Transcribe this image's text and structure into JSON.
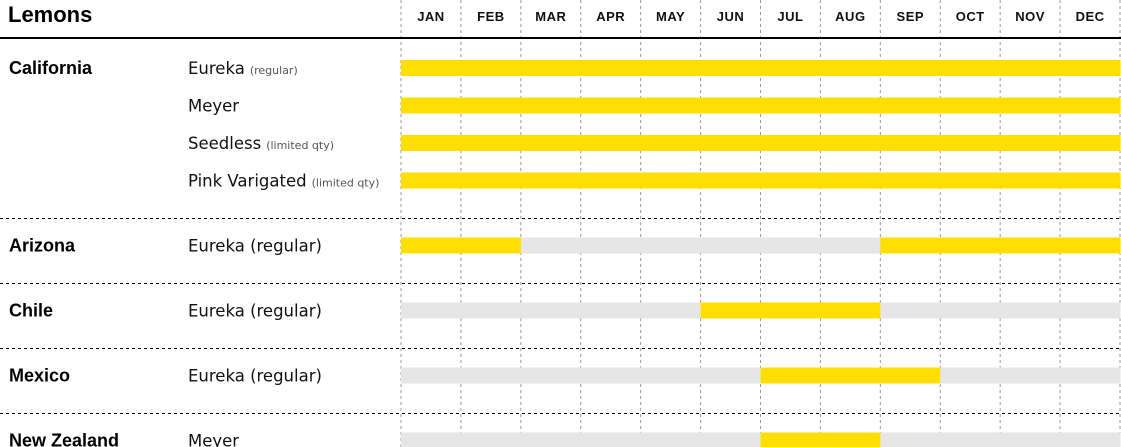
{
  "chart_data": {
    "type": "table",
    "title": "Lemons",
    "months": [
      "JAN",
      "FEB",
      "MAR",
      "APR",
      "MAY",
      "JUN",
      "JUL",
      "AUG",
      "SEP",
      "OCT",
      "NOV",
      "DEC"
    ],
    "groups": [
      {
        "region": "California",
        "rows": [
          {
            "variety": "Eureka",
            "note": "(regular)",
            "available": [
              1,
              1,
              1,
              1,
              1,
              1,
              1,
              1,
              1,
              1,
              1,
              1
            ]
          },
          {
            "variety": "Meyer",
            "note": "",
            "available": [
              1,
              1,
              1,
              1,
              1,
              1,
              1,
              1,
              1,
              1,
              1,
              1
            ]
          },
          {
            "variety": "Seedless",
            "note": "(limited qty)",
            "available": [
              1,
              1,
              1,
              1,
              1,
              1,
              1,
              1,
              1,
              1,
              1,
              1
            ]
          },
          {
            "variety": "Pink Varigated",
            "note": "(limited qty)",
            "available": [
              1,
              1,
              1,
              1,
              1,
              1,
              1,
              1,
              1,
              1,
              1,
              1
            ]
          }
        ]
      },
      {
        "region": "Arizona",
        "rows": [
          {
            "variety": "Eureka (regular)",
            "note": "",
            "available": [
              1,
              1,
              0,
              0,
              0,
              0,
              0,
              0,
              1,
              1,
              1,
              1
            ]
          }
        ]
      },
      {
        "region": "Chile",
        "rows": [
          {
            "variety": "Eureka (regular)",
            "note": "",
            "available": [
              0,
              0,
              0,
              0,
              0,
              1,
              1,
              1,
              0,
              0,
              0,
              0
            ]
          }
        ]
      },
      {
        "region": "Mexico",
        "rows": [
          {
            "variety": "Eureka (regular)",
            "note": "",
            "available": [
              0,
              0,
              0,
              0,
              0,
              0,
              1,
              1,
              1,
              0,
              0,
              0
            ]
          }
        ]
      },
      {
        "region": "New Zealand",
        "rows": [
          {
            "variety": "Meyer",
            "note": "",
            "available": [
              0,
              0,
              0,
              0,
              0,
              0,
              1,
              1,
              0,
              0,
              0,
              0
            ]
          }
        ]
      }
    ]
  },
  "colors": {
    "available": "#ffde00",
    "unavailable": "#e6e6e6",
    "divider": "#000000",
    "grid": "#999999"
  }
}
